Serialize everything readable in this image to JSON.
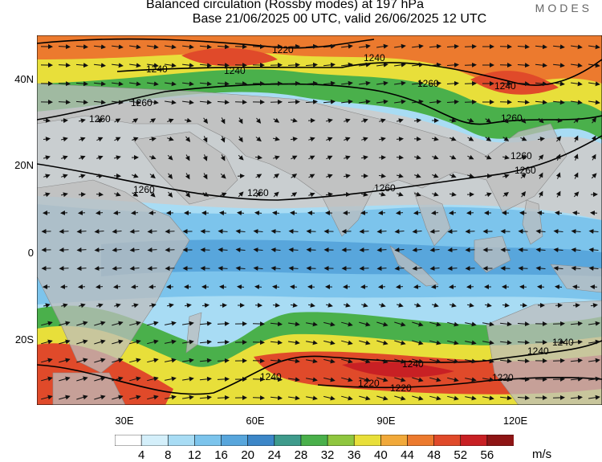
{
  "title_line1": "Balanced circulation (Rossby modes) at 197 hPa",
  "title_line2": "Base 21/06/2025 00 UTC, valid 26/06/2025 12 UTC",
  "brand": "MODES",
  "lat_labels": [
    "40N",
    "20N",
    "0",
    "20S"
  ],
  "lon_labels": [
    "30E",
    "60E",
    "90E",
    "120E"
  ],
  "colorbar": {
    "ticks": [
      "4",
      "8",
      "12",
      "16",
      "20",
      "24",
      "28",
      "32",
      "36",
      "40",
      "44",
      "48",
      "52",
      "56"
    ],
    "units": "m/s",
    "colors": [
      "#ffffff",
      "#d4effa",
      "#a8dcf4",
      "#7cc4ec",
      "#58a6dc",
      "#3d87c8",
      "#3f9b8c",
      "#4ab04b",
      "#8fc63f",
      "#e8df3a",
      "#f1a93a",
      "#ec7a2e",
      "#e04a2a",
      "#c82024",
      "#8e1515"
    ]
  },
  "contour_labels": [
    "1220",
    "1240",
    "1240",
    "1240",
    "1260",
    "1260",
    "1260",
    "1260",
    "1260",
    "1260",
    "1260",
    "1260",
    "1260",
    "1240",
    "1240",
    "1240",
    "1240",
    "1240",
    "1220",
    "1220",
    "1220"
  ],
  "land_color": "#bdbdbd"
}
